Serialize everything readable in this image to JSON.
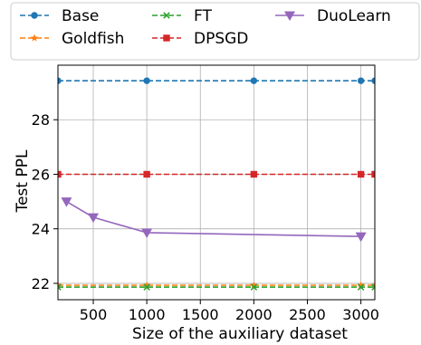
{
  "chart_data": {
    "type": "line",
    "title": "",
    "xlabel": "Size of the auxiliary dataset",
    "ylabel": "Test PPL",
    "xlim": [
      170,
      3130
    ],
    "ylim": [
      21.4,
      30.0
    ],
    "xticks": [
      500,
      1000,
      1500,
      2000,
      2500,
      3000
    ],
    "yticks": [
      22,
      24,
      26,
      28
    ],
    "grid": true,
    "legend_position": "top",
    "series": [
      {
        "name": "Base",
        "color": "#1f77b4",
        "linestyle": "dashed",
        "marker": "circle",
        "x": [
          170,
          1000,
          2000,
          3000,
          3130
        ],
        "y": [
          29.43,
          29.43,
          29.43,
          29.43,
          29.43
        ]
      },
      {
        "name": "Goldfish",
        "color": "#ff7f0e",
        "linestyle": "dashed",
        "marker": "star",
        "x": [
          170,
          1000,
          2000,
          3000,
          3130
        ],
        "y": [
          21.93,
          21.93,
          21.93,
          21.93,
          21.93
        ]
      },
      {
        "name": "FT",
        "color": "#2ca02c",
        "linestyle": "dashed",
        "marker": "x",
        "x": [
          170,
          1000,
          2000,
          3000,
          3130
        ],
        "y": [
          21.86,
          21.86,
          21.86,
          21.86,
          21.86
        ]
      },
      {
        "name": "DPSGD",
        "color": "#d62728",
        "linestyle": "dashed",
        "marker": "square",
        "x": [
          170,
          1000,
          2000,
          3000,
          3130
        ],
        "y": [
          26.0,
          26.0,
          26.0,
          26.0,
          26.0
        ]
      },
      {
        "name": "DuoLearn",
        "color": "#9467bd",
        "linestyle": "solid",
        "marker": "triangle-down",
        "x": [
          250,
          500,
          1000,
          3000
        ],
        "y": [
          25.0,
          24.42,
          23.86,
          23.72
        ]
      }
    ]
  }
}
